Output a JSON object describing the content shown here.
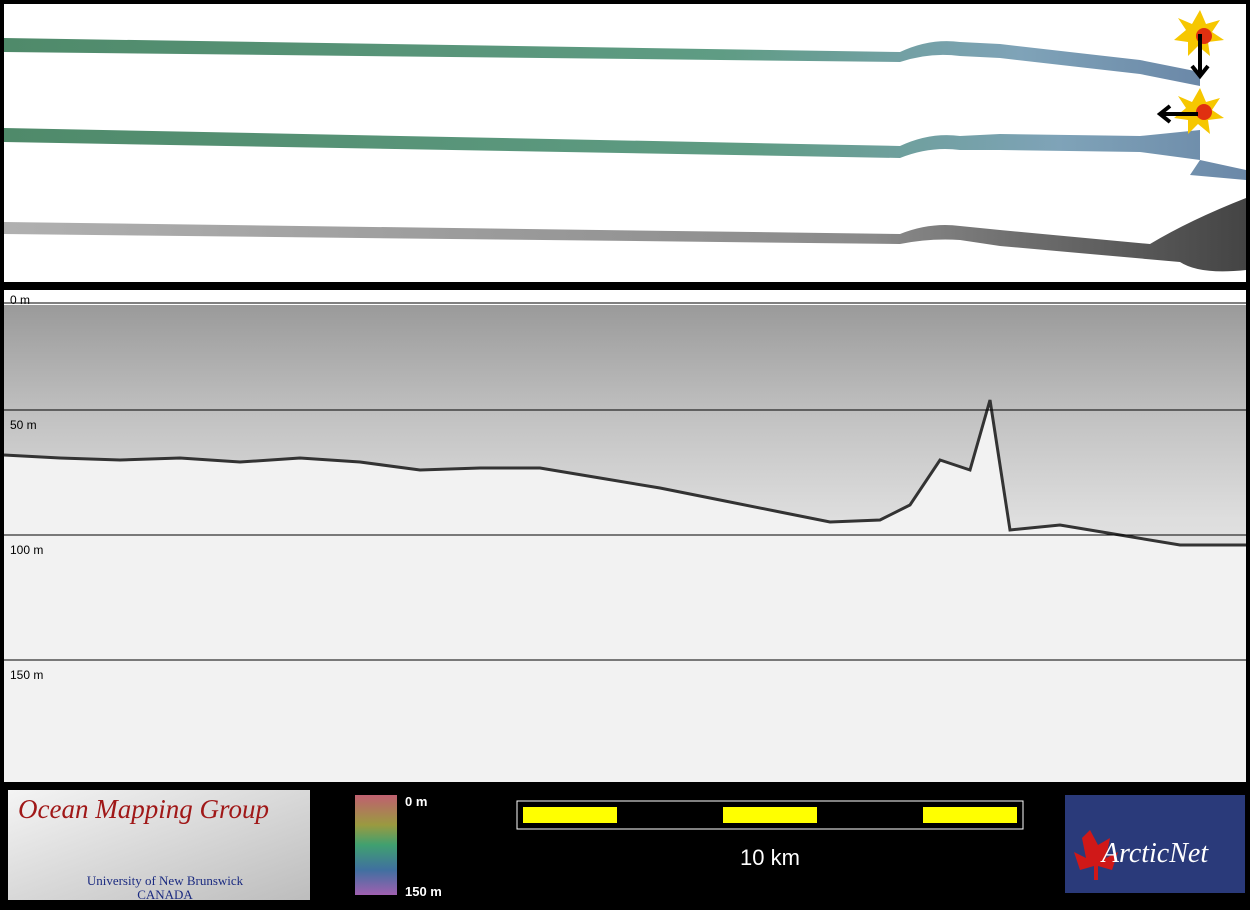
{
  "depth_axis": {
    "labels": [
      "0 m",
      "50 m",
      "100 m",
      "150 m"
    ]
  },
  "logo_left": {
    "title": "Ocean Mapping Group",
    "line1": "University of New Brunswick",
    "line2": "CANADA"
  },
  "colorbar": {
    "top": "0 m",
    "bottom": "150 m"
  },
  "scale_bar": {
    "label": "10 km"
  },
  "logo_right": {
    "title": "ArcticNet"
  }
}
